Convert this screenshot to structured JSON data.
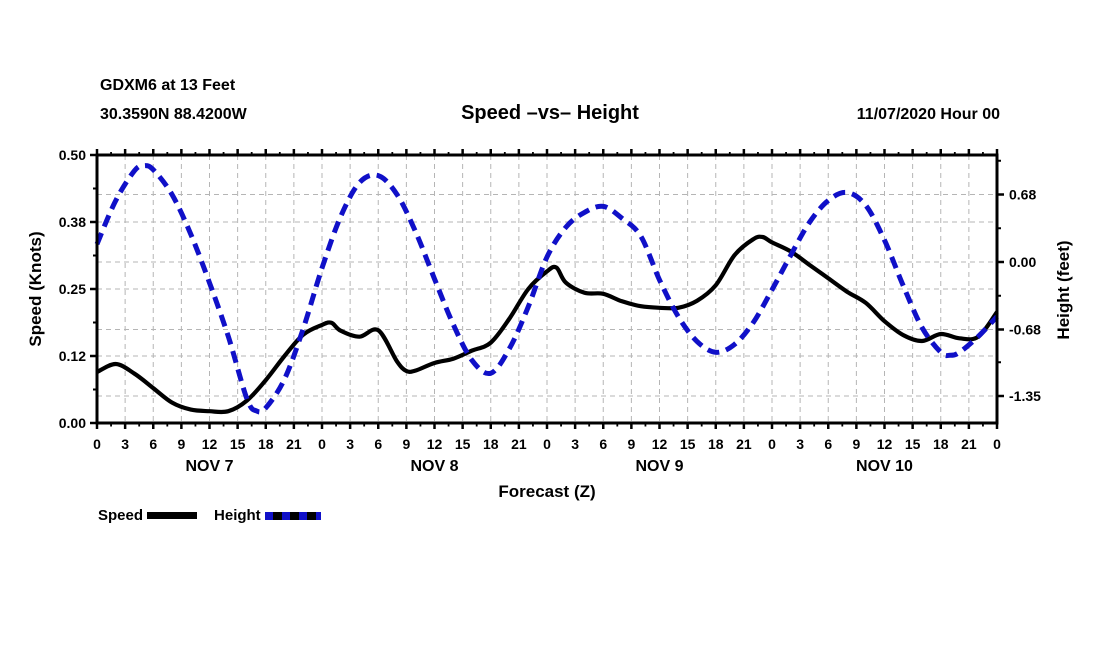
{
  "header": {
    "station_line1": "GDXM6 at 13 Feet",
    "station_line2": "30.3590N 88.4200W",
    "title": "Speed –vs– Height",
    "datetime": "11/07/2020 Hour 00"
  },
  "left_axis": {
    "label": "Speed (Knots)",
    "tick_labels": [
      "0.50",
      "0.38",
      "0.25",
      "0.12",
      "0.00"
    ],
    "range": [
      0.0,
      0.5
    ]
  },
  "right_axis": {
    "label": "Height (feet)",
    "tick_labels": [
      "0.68",
      "0.00",
      "-0.68",
      "-1.35"
    ],
    "tick_values": [
      0.68,
      0.0,
      -0.68,
      -1.35
    ]
  },
  "x_axis": {
    "title": "Forecast (Z)",
    "hour_labels": [
      "0",
      "3",
      "6",
      "9",
      "12",
      "15",
      "18",
      "21"
    ],
    "final_label": "0",
    "day_labels": [
      "NOV 7",
      "NOV 8",
      "NOV 9",
      "NOV 10"
    ],
    "hours_per_day": 24,
    "total_hours": 96
  },
  "legend": {
    "items": [
      {
        "label": "Speed",
        "style": "solid"
      },
      {
        "label": "Height",
        "style": "dashed"
      }
    ]
  },
  "colors": {
    "speed": "#000000",
    "height": "#1010c8",
    "grid": "#b5b5b5",
    "axis": "#000000",
    "text": "#000000",
    "background": "#ffffff"
  },
  "chart_data": {
    "type": "line",
    "title": "Speed –vs– Height",
    "xlabel": "Forecast (Z)",
    "x_unit": "hours from 2020-11-07 00Z",
    "grid": true,
    "legend_position": "bottom-left",
    "left_ylim": [
      0.0,
      0.5
    ],
    "left_tick_values": [
      0.5,
      0.375,
      0.25,
      0.125,
      0.0
    ],
    "right_tick_values": [
      0.68,
      0.0,
      -0.68,
      -1.35
    ],
    "x_days": [
      "NOV 7",
      "NOV 8",
      "NOV 9",
      "NOV 10"
    ],
    "series": [
      {
        "name": "Speed",
        "axis": "left",
        "unit": "Knots",
        "style": "solid",
        "points": [
          [
            0,
            0.095
          ],
          [
            2,
            0.11
          ],
          [
            4,
            0.092
          ],
          [
            6,
            0.065
          ],
          [
            8,
            0.038
          ],
          [
            10,
            0.025
          ],
          [
            12,
            0.022
          ],
          [
            14,
            0.022
          ],
          [
            16,
            0.042
          ],
          [
            18,
            0.08
          ],
          [
            20,
            0.125
          ],
          [
            22,
            0.165
          ],
          [
            24,
            0.183
          ],
          [
            25,
            0.187
          ],
          [
            26,
            0.172
          ],
          [
            28,
            0.161
          ],
          [
            30,
            0.173
          ],
          [
            32,
            0.115
          ],
          [
            33,
            0.097
          ],
          [
            34,
            0.098
          ],
          [
            36,
            0.112
          ],
          [
            38,
            0.12
          ],
          [
            40,
            0.135
          ],
          [
            42,
            0.15
          ],
          [
            44,
            0.195
          ],
          [
            46,
            0.25
          ],
          [
            48,
            0.283
          ],
          [
            49,
            0.29
          ],
          [
            50,
            0.262
          ],
          [
            52,
            0.243
          ],
          [
            54,
            0.241
          ],
          [
            56,
            0.227
          ],
          [
            58,
            0.218
          ],
          [
            60,
            0.215
          ],
          [
            62,
            0.215
          ],
          [
            64,
            0.228
          ],
          [
            66,
            0.257
          ],
          [
            68,
            0.313
          ],
          [
            70,
            0.343
          ],
          [
            71,
            0.347
          ],
          [
            72,
            0.337
          ],
          [
            74,
            0.32
          ],
          [
            76,
            0.295
          ],
          [
            78,
            0.27
          ],
          [
            80,
            0.245
          ],
          [
            82,
            0.224
          ],
          [
            84,
            0.19
          ],
          [
            86,
            0.164
          ],
          [
            88,
            0.153
          ],
          [
            90,
            0.166
          ],
          [
            92,
            0.158
          ],
          [
            94,
            0.161
          ],
          [
            96,
            0.207
          ]
        ]
      },
      {
        "name": "Height",
        "axis": "right",
        "unit": "feet",
        "style": "dashed",
        "points": [
          [
            0,
            0.18
          ],
          [
            2,
            0.62
          ],
          [
            4,
            0.92
          ],
          [
            5,
            0.97
          ],
          [
            6,
            0.93
          ],
          [
            8,
            0.68
          ],
          [
            10,
            0.28
          ],
          [
            12,
            -0.21
          ],
          [
            14,
            -0.75
          ],
          [
            16,
            -1.38
          ],
          [
            17,
            -1.5
          ],
          [
            18,
            -1.47
          ],
          [
            20,
            -1.18
          ],
          [
            22,
            -0.67
          ],
          [
            24,
            -0.06
          ],
          [
            26,
            0.46
          ],
          [
            28,
            0.8
          ],
          [
            30,
            0.87
          ],
          [
            32,
            0.68
          ],
          [
            34,
            0.3
          ],
          [
            36,
            -0.17
          ],
          [
            38,
            -0.63
          ],
          [
            40,
            -0.99
          ],
          [
            42,
            -1.12
          ],
          [
            44,
            -0.87
          ],
          [
            46,
            -0.45
          ],
          [
            48,
            0.05
          ],
          [
            50,
            0.35
          ],
          [
            52,
            0.5
          ],
          [
            54,
            0.56
          ],
          [
            56,
            0.44
          ],
          [
            58,
            0.26
          ],
          [
            60,
            -0.18
          ],
          [
            62,
            -0.55
          ],
          [
            64,
            -0.8
          ],
          [
            66,
            -0.91
          ],
          [
            68,
            -0.83
          ],
          [
            70,
            -0.61
          ],
          [
            72,
            -0.28
          ],
          [
            74,
            0.07
          ],
          [
            76,
            0.4
          ],
          [
            78,
            0.62
          ],
          [
            80,
            0.7
          ],
          [
            82,
            0.57
          ],
          [
            84,
            0.22
          ],
          [
            86,
            -0.24
          ],
          [
            88,
            -0.66
          ],
          [
            90,
            -0.91
          ],
          [
            91,
            -0.94
          ],
          [
            92,
            -0.91
          ],
          [
            94,
            -0.75
          ],
          [
            96,
            -0.55
          ]
        ]
      }
    ]
  }
}
